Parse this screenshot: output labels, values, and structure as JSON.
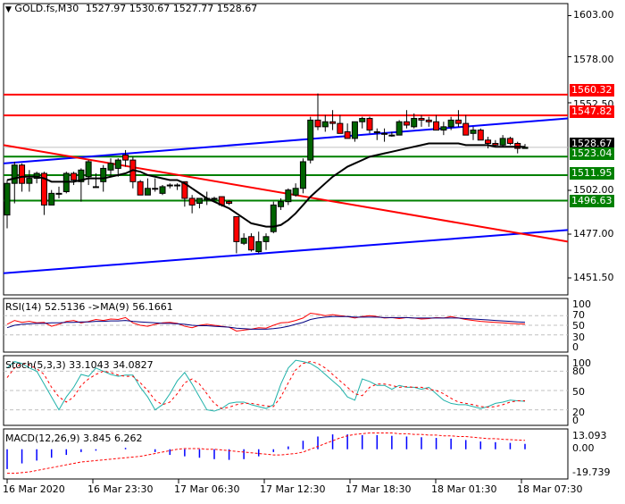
{
  "header": {
    "symbol_label": "GOLD.fs,M30",
    "ohlc": "1527.97 1530.67 1527.77 1528.67"
  },
  "colors": {
    "bull": "#006400",
    "bear": "#ff0000",
    "resistance": "#ff0000",
    "support": "#008000",
    "channel": "#0000ff",
    "ma": "#000000",
    "rsi": "#ff0000",
    "rsi_ma": "#000080",
    "stoch_main": "#20b2aa",
    "stoch_signal": "#ff0000",
    "macd_hist": "#0000ff",
    "macd_signal": "#ff0000",
    "last_price_bg": "#000000"
  },
  "main_panel": {
    "price_axis": [
      "1603.00",
      "1578.00",
      "1552.50",
      "1502.00",
      "1477.00",
      "1451.50"
    ],
    "price_tags": [
      {
        "label": "1560.32",
        "type": "resistance"
      },
      {
        "label": "1547.82",
        "type": "resistance"
      },
      {
        "label": "1528.67",
        "type": "last"
      },
      {
        "label": "1523.04",
        "type": "support"
      },
      {
        "label": "1511.95",
        "type": "support"
      },
      {
        "label": "1496.63",
        "type": "support"
      }
    ]
  },
  "rsi_panel": {
    "label": "RSI(14) 52.5136 ->MA(9) 56.1661",
    "levels": [
      "100",
      "70",
      "50",
      "30",
      "0"
    ]
  },
  "stoch_panel": {
    "label": "Stoch(5,3,3) 33.1043 34.0827",
    "levels": [
      "100",
      "80",
      "50",
      "20",
      "0"
    ]
  },
  "macd_panel": {
    "label": "MACD(12,26,9) 3.845 6.262",
    "levels": [
      "13.093",
      "0.00",
      "-19.739"
    ]
  },
  "time_axis": [
    "16 Mar 2020",
    "16 Mar 23:30",
    "17 Mar 06:30",
    "17 Mar 12:30",
    "17 Mar 18:30",
    "18 Mar 01:30",
    "18 Mar 07:30"
  ],
  "chart_data": [
    {
      "type": "candlestick",
      "title": "GOLD.fs,M30",
      "ohlc_last": {
        "open": 1527.97,
        "high": 1530.67,
        "low": 1527.77,
        "close": 1528.67
      },
      "ylim": [
        1440,
        1615
      ],
      "y_ticks": [
        1603.0,
        1578.0,
        1552.5,
        1502.0,
        1477.0,
        1451.5
      ],
      "x_ticks": [
        "16 Mar 2020",
        "16 Mar 23:30",
        "17 Mar 06:30",
        "17 Mar 12:30",
        "17 Mar 18:30",
        "18 Mar 01:30",
        "18 Mar 07:30"
      ],
      "horizontal_levels": [
        {
          "value": 1560.32,
          "kind": "resistance"
        },
        {
          "value": 1547.82,
          "kind": "resistance"
        },
        {
          "value": 1523.04,
          "kind": "support"
        },
        {
          "value": 1511.95,
          "kind": "support"
        },
        {
          "value": 1496.63,
          "kind": "support"
        }
      ],
      "trendlines": [
        {
          "color": "blue",
          "from": [
            0,
            1519
          ],
          "to": [
            1,
            1546
          ]
        },
        {
          "color": "blue",
          "from": [
            0,
            1453
          ],
          "to": [
            1,
            1479
          ]
        },
        {
          "color": "red",
          "from": [
            0,
            1530
          ],
          "to": [
            1,
            1472
          ]
        }
      ],
      "candles": [
        [
          1488,
          1509,
          1480,
          1507
        ],
        [
          1507,
          1520,
          1495,
          1518
        ],
        [
          1518,
          1519,
          1502,
          1507
        ],
        [
          1507,
          1515,
          1502,
          1510
        ],
        [
          1510,
          1514,
          1507,
          1513
        ],
        [
          1513,
          1514,
          1488,
          1494
        ],
        [
          1494,
          1503,
          1494,
          1501
        ],
        [
          1501,
          1505,
          1498,
          1501
        ],
        [
          1502,
          1514,
          1501,
          1513
        ],
        [
          1513,
          1514,
          1506,
          1509
        ],
        [
          1508,
          1516,
          1496,
          1515
        ],
        [
          1511,
          1521,
          1506,
          1520
        ],
        [
          1505,
          1513,
          1505,
          1505
        ],
        [
          1508,
          1518,
          1502,
          1516
        ],
        [
          1515,
          1522,
          1511,
          1519
        ],
        [
          1516,
          1522,
          1511,
          1521
        ],
        [
          1524,
          1527,
          1517,
          1521
        ],
        [
          1521,
          1523,
          1504,
          1508
        ],
        [
          1508,
          1509,
          1503,
          1500
        ],
        [
          1500,
          1510,
          1500,
          1504
        ],
        [
          1504,
          1510,
          1502,
          1504
        ],
        [
          1501,
          1506,
          1500,
          1505
        ],
        [
          1506,
          1507,
          1504,
          1506
        ],
        [
          1506,
          1507,
          1503,
          1506
        ],
        [
          1508,
          1508,
          1493,
          1498
        ],
        [
          1498,
          1500,
          1489,
          1494
        ],
        [
          1495,
          1498,
          1492,
          1498
        ],
        [
          1497,
          1502,
          1494,
          1498
        ],
        [
          1498,
          1499,
          1496,
          1498
        ],
        [
          1499,
          1499,
          1493,
          1494
        ],
        [
          1496,
          1497,
          1494,
          1495
        ],
        [
          1487,
          1487,
          1465,
          1472
        ],
        [
          1471,
          1477,
          1470,
          1474
        ],
        [
          1475,
          1477,
          1466,
          1467
        ],
        [
          1466,
          1478,
          1465,
          1472
        ],
        [
          1472,
          1477,
          1467,
          1475
        ],
        [
          1478,
          1496,
          1477,
          1494
        ],
        [
          1493,
          1498,
          1491,
          1496
        ],
        [
          1496,
          1504,
          1494,
          1503
        ],
        [
          1500,
          1507,
          1499,
          1504
        ],
        [
          1504,
          1522,
          1501,
          1520
        ],
        [
          1521,
          1547,
          1519,
          1545
        ],
        [
          1545,
          1561,
          1539,
          1541
        ],
        [
          1541,
          1548,
          1538,
          1544
        ],
        [
          1544,
          1551,
          1539,
          1543
        ],
        [
          1543,
          1548,
          1538,
          1537
        ],
        [
          1538,
          1543,
          1534,
          1534
        ],
        [
          1534,
          1544,
          1532,
          1544
        ],
        [
          1544,
          1547,
          1540,
          1546
        ],
        [
          1546,
          1547,
          1537,
          1539
        ],
        [
          1538,
          1540,
          1533,
          1538
        ],
        [
          1537,
          1540,
          1532,
          1537
        ],
        [
          1536,
          1538,
          1535,
          1536
        ],
        [
          1536,
          1545,
          1536,
          1544
        ],
        [
          1544,
          1551,
          1540,
          1542
        ],
        [
          1541,
          1549,
          1540,
          1546
        ],
        [
          1546,
          1548,
          1541,
          1545
        ],
        [
          1545,
          1547,
          1541,
          1544
        ],
        [
          1544,
          1548,
          1540,
          1539
        ],
        [
          1539,
          1544,
          1536,
          1541
        ],
        [
          1541,
          1547,
          1539,
          1545
        ],
        [
          1545,
          1551,
          1541,
          1543
        ],
        [
          1543,
          1548,
          1537,
          1536
        ],
        [
          1537,
          1541,
          1533,
          1539
        ],
        [
          1539,
          1540,
          1533,
          1533
        ],
        [
          1533,
          1535,
          1528,
          1531
        ],
        [
          1531,
          1533,
          1529,
          1530
        ],
        [
          1530,
          1536,
          1529,
          1534
        ],
        [
          1534,
          1535,
          1530,
          1531
        ],
        [
          1531,
          1532,
          1525,
          1528
        ],
        [
          1527.97,
          1530.67,
          1527.77,
          1528.67
        ]
      ],
      "ma_series": [
        1509,
        1510,
        1511,
        1511,
        1511,
        1510,
        1508,
        1508,
        1508,
        1508,
        1509,
        1510,
        1510,
        1510,
        1511,
        1512,
        1513,
        1515,
        1514,
        1512,
        1511,
        1510,
        1509,
        1509,
        1507,
        1504,
        1501,
        1498,
        1496,
        1494,
        1492,
        1489,
        1486,
        1483,
        1482,
        1481,
        1481,
        1482,
        1485,
        1489,
        1494,
        1499,
        1503,
        1507,
        1511,
        1514,
        1517,
        1519,
        1521,
        1523,
        1524,
        1525,
        1526,
        1527,
        1528,
        1529,
        1530,
        1531,
        1531,
        1531,
        1531,
        1531,
        1530,
        1530,
        1530,
        1530,
        1529,
        1529,
        1529,
        1529,
        1529
      ]
    },
    {
      "type": "line",
      "title": "RSI(14) 52.5136 ->MA(9) 56.1661",
      "ylim": [
        0,
        100
      ],
      "y_ticks": [
        100,
        70,
        50,
        30,
        0
      ],
      "series": [
        {
          "name": "RSI(14)",
          "last": 52.5136,
          "values": [
            52,
            60,
            56,
            58,
            55,
            56,
            48,
            52,
            58,
            60,
            55,
            58,
            62,
            60,
            63,
            62,
            66,
            55,
            50,
            48,
            52,
            55,
            56,
            54,
            48,
            45,
            50,
            52,
            50,
            48,
            46,
            38,
            40,
            42,
            45,
            44,
            50,
            55,
            56,
            60,
            65,
            75,
            73,
            70,
            72,
            70,
            68,
            65,
            68,
            70,
            68,
            65,
            66,
            64,
            66,
            65,
            63,
            64,
            66,
            65,
            68,
            65,
            62,
            60,
            58,
            57,
            56,
            55,
            54,
            53,
            52.5
          ]
        },
        {
          "name": "MA(9)",
          "last": 56.1661,
          "values": [
            45,
            50,
            52,
            53,
            54,
            54,
            55,
            55,
            56,
            56,
            57,
            57,
            58,
            58,
            59,
            59,
            60,
            58,
            57,
            56,
            55,
            54,
            54,
            53,
            52,
            50,
            49,
            49,
            48,
            47,
            46,
            44,
            43,
            42,
            42,
            42,
            43,
            45,
            48,
            52,
            56,
            62,
            65,
            67,
            68,
            68,
            68,
            67,
            67,
            67,
            67,
            66,
            66,
            66,
            66,
            65,
            65,
            65,
            65,
            65,
            65,
            65,
            64,
            63,
            62,
            61,
            60,
            59,
            58,
            57,
            56.2
          ]
        }
      ]
    },
    {
      "type": "line",
      "title": "Stoch(5,3,3) 33.1043 34.0827",
      "ylim": [
        0,
        100
      ],
      "y_ticks": [
        100,
        80,
        50,
        20,
        0
      ],
      "series": [
        {
          "name": "Main",
          "last": 33.1043,
          "values": [
            85,
            95,
            92,
            85,
            80,
            60,
            40,
            20,
            40,
            55,
            75,
            72,
            85,
            80,
            75,
            72,
            74,
            74,
            55,
            40,
            20,
            28,
            45,
            65,
            78,
            60,
            40,
            20,
            18,
            22,
            30,
            32,
            32,
            28,
            25,
            22,
            28,
            60,
            85,
            97,
            95,
            92,
            85,
            75,
            65,
            55,
            40,
            35,
            68,
            64,
            58,
            58,
            52,
            58,
            55,
            55,
            52,
            55,
            45,
            35,
            30,
            28,
            28,
            25,
            22,
            25,
            30,
            32,
            35,
            34,
            33.1
          ]
        },
        {
          "name": "Signal",
          "last": 34.0827,
          "values": [
            70,
            85,
            92,
            90,
            84,
            75,
            55,
            40,
            32,
            40,
            58,
            68,
            75,
            80,
            78,
            74,
            72,
            72,
            62,
            50,
            35,
            28,
            32,
            45,
            62,
            68,
            60,
            45,
            30,
            22,
            24,
            28,
            30,
            30,
            28,
            26,
            25,
            40,
            62,
            82,
            92,
            95,
            92,
            85,
            75,
            65,
            55,
            45,
            42,
            55,
            60,
            60,
            58,
            55,
            56,
            55,
            55,
            52,
            50,
            45,
            38,
            32,
            30,
            28,
            25,
            24,
            25,
            28,
            32,
            34,
            34.1
          ]
        }
      ]
    },
    {
      "type": "bar",
      "title": "MACD(12,26,9) 3.845 6.262",
      "ylim": [
        -19.739,
        13.093
      ],
      "y_ticks": [
        13.093,
        0.0,
        -19.739
      ],
      "series": [
        {
          "name": "MACD",
          "last": 3.845,
          "values": [
            -14,
            -11,
            -10,
            -9,
            -8,
            -7,
            -6,
            -5,
            -4,
            -3,
            -2,
            -1.5,
            -1,
            -0.5,
            0,
            0.5,
            1,
            0.5,
            0,
            -1,
            -2,
            -3,
            -4,
            -4.5,
            -5,
            -5.5,
            -6,
            -6.5,
            -7,
            -7.5,
            -7.5,
            -7.5,
            -7,
            -6,
            -5,
            -4,
            -2,
            0,
            2,
            4,
            6,
            8,
            9,
            10,
            10.5,
            10.5,
            10.5,
            10,
            10,
            10,
            10,
            9.5,
            9.5,
            9,
            9,
            9,
            8.5,
            8.5,
            8,
            8,
            7.5,
            7,
            6.5,
            6,
            5.5,
            5,
            5,
            4.5,
            4.5,
            4,
            3.8
          ]
        },
        {
          "name": "Signal",
          "last": 6.262,
          "values": [
            -17,
            -17,
            -16.5,
            -16,
            -15,
            -14,
            -13,
            -12,
            -11,
            -10,
            -9,
            -8.5,
            -8,
            -7.5,
            -7,
            -6.5,
            -6,
            -5.5,
            -5,
            -4,
            -3,
            -2,
            -1,
            0,
            0.5,
            0.5,
            0.5,
            0,
            0,
            -0.5,
            -1,
            -1.5,
            -2,
            -2.5,
            -3,
            -3.5,
            -4,
            -4,
            -3.5,
            -3,
            -2,
            0,
            2,
            4,
            6,
            8,
            9.5,
            10.5,
            11,
            11.5,
            11.5,
            11.5,
            11.5,
            11,
            11,
            10.5,
            10.5,
            10,
            10,
            9.5,
            9.5,
            9,
            9,
            8.5,
            8,
            7.5,
            7.5,
            7,
            6.8,
            6.5,
            6.3
          ]
        }
      ]
    }
  ]
}
